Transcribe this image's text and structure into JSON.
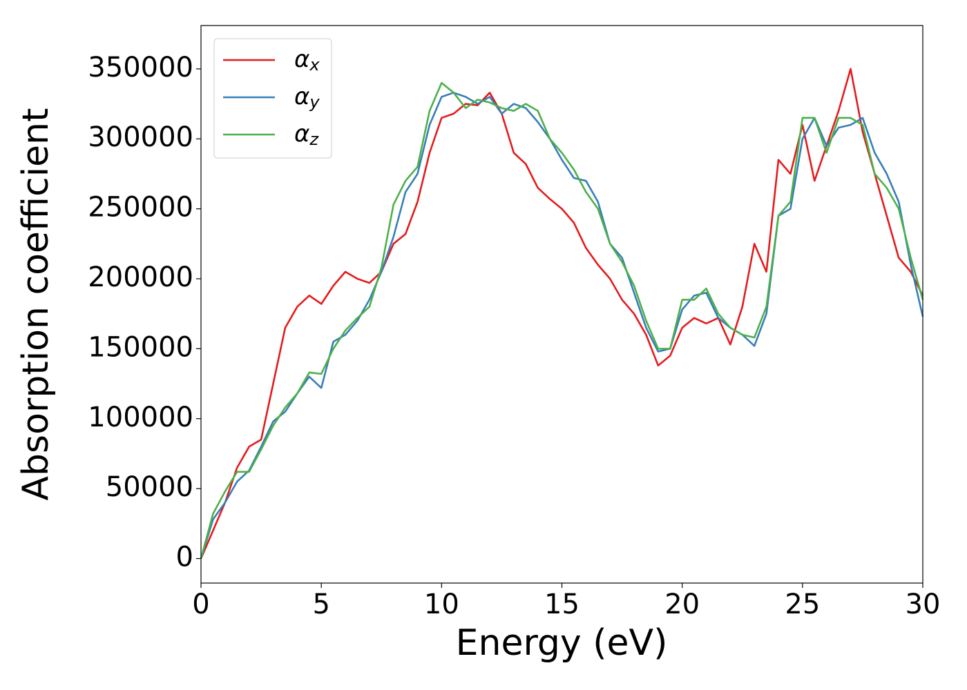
{
  "chart_data": {
    "type": "line",
    "xlabel": "Energy (eV)",
    "ylabel": "Absorption coefficient",
    "x": [
      0,
      0.5,
      1,
      1.5,
      2,
      2.5,
      3,
      3.5,
      4,
      4.5,
      5,
      5.5,
      6,
      6.5,
      7,
      7.5,
      8,
      8.5,
      9,
      9.5,
      10,
      10.5,
      11,
      11.5,
      12,
      12.5,
      13,
      13.5,
      14,
      14.5,
      15,
      15.5,
      16,
      16.5,
      17,
      17.5,
      18,
      18.5,
      19,
      19.5,
      20,
      20.5,
      21,
      21.5,
      22,
      22.5,
      23,
      23.5,
      24,
      24.5,
      25,
      25.5,
      26,
      26.5,
      27,
      27.5,
      28,
      28.5,
      29,
      29.5,
      30
    ],
    "series": [
      {
        "name": "αx",
        "color": "#e41a1c",
        "values": [
          0,
          20000,
          40000,
          65000,
          80000,
          85000,
          125000,
          165000,
          180000,
          188000,
          182000,
          195000,
          205000,
          200000,
          197000,
          205000,
          225000,
          232000,
          255000,
          290000,
          315000,
          318000,
          325000,
          324000,
          333000,
          318000,
          290000,
          282000,
          265000,
          257000,
          250000,
          240000,
          222000,
          210000,
          200000,
          185000,
          175000,
          160000,
          138000,
          145000,
          165000,
          172000,
          168000,
          172000,
          153000,
          180000,
          225000,
          205000,
          285000,
          275000,
          310000,
          270000,
          295000,
          320000,
          350000,
          305000,
          275000,
          245000,
          215000,
          205000,
          188000
        ]
      },
      {
        "name": "αy",
        "color": "#377eb8",
        "values": [
          0,
          28000,
          40000,
          55000,
          63000,
          80000,
          98000,
          105000,
          118000,
          130000,
          122000,
          155000,
          160000,
          170000,
          185000,
          205000,
          230000,
          262000,
          275000,
          310000,
          330000,
          333000,
          330000,
          325000,
          330000,
          318000,
          325000,
          322000,
          312000,
          300000,
          285000,
          272000,
          270000,
          255000,
          225000,
          215000,
          190000,
          165000,
          148000,
          150000,
          178000,
          188000,
          190000,
          172000,
          165000,
          160000,
          152000,
          175000,
          245000,
          250000,
          300000,
          315000,
          295000,
          308000,
          310000,
          315000,
          290000,
          275000,
          255000,
          210000,
          173000
        ]
      },
      {
        "name": "αz",
        "color": "#4daf4a",
        "values": [
          0,
          32000,
          48000,
          62000,
          62000,
          78000,
          95000,
          108000,
          118000,
          133000,
          132000,
          150000,
          163000,
          172000,
          180000,
          208000,
          253000,
          270000,
          280000,
          320000,
          340000,
          333000,
          322000,
          328000,
          326000,
          322000,
          320000,
          325000,
          320000,
          300000,
          290000,
          278000,
          262000,
          250000,
          225000,
          212000,
          195000,
          170000,
          150000,
          150000,
          185000,
          185000,
          193000,
          175000,
          165000,
          160000,
          158000,
          180000,
          245000,
          255000,
          315000,
          315000,
          290000,
          315000,
          315000,
          310000,
          275000,
          265000,
          250000,
          215000,
          185000
        ]
      }
    ],
    "xlim": [
      0,
      30
    ],
    "xticks": [
      0,
      5,
      10,
      15,
      20,
      25,
      30
    ],
    "ylim": [
      -17500,
      381000
    ],
    "yticks": [
      0,
      50000,
      100000,
      150000,
      200000,
      250000,
      300000,
      350000
    ],
    "legend": "upper left",
    "grid": false
  }
}
